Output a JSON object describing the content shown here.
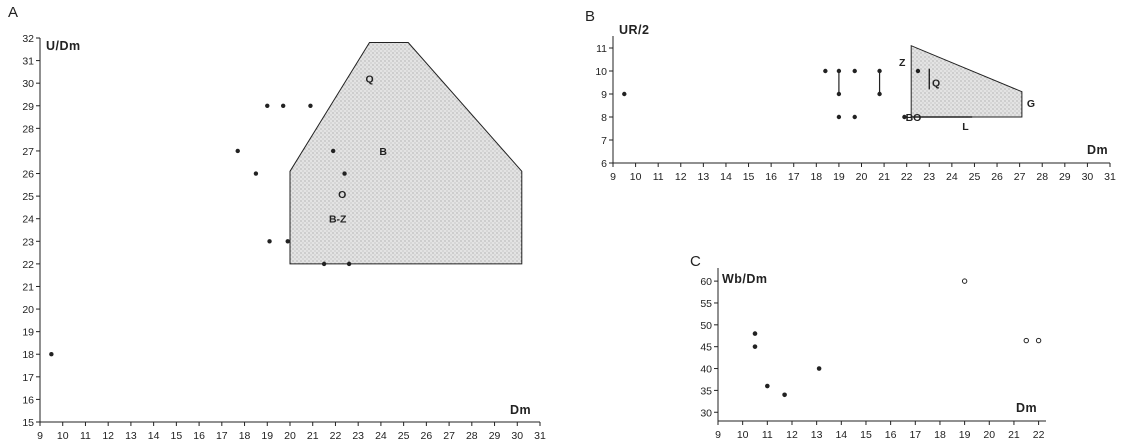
{
  "chart_data": [
    {
      "panel": "A",
      "type": "scatter",
      "ylabel": "U/Dm",
      "xlabel": "Dm",
      "xlim": [
        9,
        31
      ],
      "ylim": [
        15,
        32
      ],
      "xticks": [
        9,
        10,
        11,
        12,
        13,
        14,
        15,
        16,
        17,
        18,
        19,
        20,
        21,
        22,
        23,
        24,
        25,
        26,
        27,
        28,
        29,
        30,
        31
      ],
      "yticks": [
        15,
        16,
        17,
        18,
        19,
        20,
        21,
        22,
        23,
        24,
        25,
        26,
        27,
        28,
        29,
        30,
        31,
        32
      ],
      "points": [
        {
          "x": 9.5,
          "y": 18
        },
        {
          "x": 17.7,
          "y": 27
        },
        {
          "x": 18.5,
          "y": 26
        },
        {
          "x": 19.0,
          "y": 29
        },
        {
          "x": 19.7,
          "y": 29
        },
        {
          "x": 20.9,
          "y": 29
        },
        {
          "x": 19.1,
          "y": 23
        },
        {
          "x": 19.9,
          "y": 23
        },
        {
          "x": 21.5,
          "y": 22
        },
        {
          "x": 22.6,
          "y": 22
        },
        {
          "x": 21.9,
          "y": 27
        },
        {
          "x": 22.4,
          "y": 26
        }
      ],
      "region": {
        "polygon": [
          [
            20,
            22
          ],
          [
            30.2,
            22
          ],
          [
            30.2,
            26.1
          ],
          [
            25.2,
            31.8
          ],
          [
            23.5,
            31.8
          ],
          [
            20,
            26.1
          ]
        ],
        "labels": [
          {
            "text": "Q",
            "x": 23.5,
            "y": 30.2
          },
          {
            "text": "B",
            "x": 24.1,
            "y": 27
          },
          {
            "text": "O",
            "x": 22.3,
            "y": 25.1
          },
          {
            "text": "B-Z",
            "x": 22.1,
            "y": 24
          }
        ]
      }
    },
    {
      "panel": "B",
      "type": "scatter",
      "ylabel": "UR/2",
      "xlabel": "Dm",
      "xlim": [
        9,
        31
      ],
      "ylim": [
        6,
        11
      ],
      "xticks": [
        9,
        10,
        11,
        12,
        13,
        14,
        15,
        16,
        17,
        18,
        19,
        20,
        21,
        22,
        23,
        24,
        25,
        26,
        27,
        28,
        29,
        30,
        31
      ],
      "yticks": [
        6,
        7,
        8,
        9,
        10,
        11
      ],
      "points": [
        {
          "x": 9.5,
          "y": 9
        },
        {
          "x": 18.4,
          "y": 10
        },
        {
          "x": 19.0,
          "y": 10
        },
        {
          "x": 19.0,
          "y": 9
        },
        {
          "x": 19.0,
          "y": 8
        },
        {
          "x": 19.7,
          "y": 10
        },
        {
          "x": 19.7,
          "y": 8
        },
        {
          "x": 20.8,
          "y": 10
        },
        {
          "x": 20.8,
          "y": 9
        },
        {
          "x": 21.9,
          "y": 8
        },
        {
          "x": 22.5,
          "y": 10
        }
      ],
      "ranges": [
        {
          "x": 19.0,
          "y1": 9,
          "y2": 10
        },
        {
          "x": 20.8,
          "y1": 9,
          "y2": 10
        }
      ],
      "region": {
        "polygon": [
          [
            22.2,
            8
          ],
          [
            27.1,
            8
          ],
          [
            27.1,
            9.1
          ],
          [
            22.2,
            11.1
          ]
        ],
        "labels": [
          {
            "text": "Z",
            "x": 21.8,
            "y": 10.4
          },
          {
            "text": "Q",
            "x": 23.3,
            "y": 9.5
          },
          {
            "text": "G",
            "x": 27.5,
            "y": 8.6
          },
          {
            "text": "BO",
            "x": 22.3,
            "y": 8
          },
          {
            "text": "L",
            "x": 24.6,
            "y": 7.6
          }
        ]
      }
    },
    {
      "panel": "C",
      "type": "scatter",
      "ylabel": "Wb/Dm",
      "xlabel": "Dm",
      "xlim": [
        9,
        22.3
      ],
      "ylim": [
        28,
        63
      ],
      "xticks": [
        9,
        10,
        11,
        12,
        13,
        14,
        15,
        16,
        17,
        18,
        19,
        20,
        21,
        22
      ],
      "yticks": [
        30,
        35,
        40,
        45,
        50,
        55,
        60
      ],
      "points_filled": [
        {
          "x": 10.5,
          "y": 48
        },
        {
          "x": 10.5,
          "y": 45
        },
        {
          "x": 11.0,
          "y": 36
        },
        {
          "x": 11.7,
          "y": 34
        },
        {
          "x": 13.1,
          "y": 40
        }
      ],
      "points_open": [
        {
          "x": 19.0,
          "y": 60
        },
        {
          "x": 21.5,
          "y": 46.4
        },
        {
          "x": 22.0,
          "y": 46.4
        }
      ]
    }
  ]
}
